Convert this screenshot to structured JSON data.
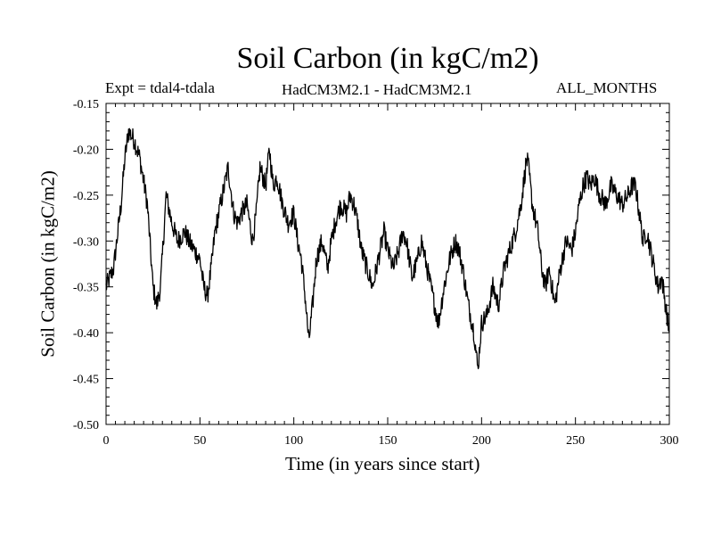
{
  "chart_data": {
    "type": "line",
    "title": "Soil Carbon (in kgC/m2)",
    "subtitle_left": "Expt = tdal4-tdala",
    "subtitle_center": "HadCM3M2.1 - HadCM3M2.1",
    "subtitle_right": "ALL_MONTHS",
    "xlabel": "Time (in years since start)",
    "ylabel": "Soil Carbon (in kgC/m2)",
    "xlim": [
      0,
      300
    ],
    "ylim": [
      -0.5,
      -0.15
    ],
    "xticks": [
      0,
      50,
      100,
      150,
      200,
      250,
      300
    ],
    "xtick_labels": [
      "0",
      "50",
      "100",
      "150",
      "200",
      "250",
      "300"
    ],
    "yticks": [
      -0.15,
      -0.2,
      -0.25,
      -0.3,
      -0.35,
      -0.4,
      -0.45,
      -0.5
    ],
    "ytick_labels": [
      "-0.15",
      "-0.20",
      "-0.25",
      "-0.30",
      "-0.35",
      "-0.40",
      "-0.45",
      "-0.50"
    ],
    "grid": false,
    "series": [
      {
        "name": "Soil Carbon",
        "color": "#000000",
        "x": [
          0,
          4,
          8,
          10,
          12,
          15,
          18,
          22,
          25,
          27,
          29,
          32,
          35,
          38,
          42,
          44,
          47,
          50,
          52,
          54,
          56,
          58,
          62,
          65,
          68,
          70,
          72,
          75,
          78,
          80,
          82,
          85,
          87,
          89,
          91,
          94,
          97,
          100,
          102,
          104,
          106,
          108,
          110,
          112,
          115,
          118,
          120,
          122,
          125,
          128,
          130,
          132,
          134,
          136,
          139,
          142,
          145,
          148,
          150,
          153,
          156,
          158,
          160,
          163,
          166,
          168,
          171,
          174,
          177,
          180,
          183,
          186,
          188,
          190,
          193,
          196,
          198,
          200,
          203,
          206,
          209,
          212,
          215,
          218,
          221,
          224,
          225,
          227,
          230,
          232,
          234,
          236,
          239,
          242,
          245,
          248,
          250,
          252,
          254,
          256,
          258,
          260,
          263,
          266,
          269,
          272,
          275,
          278,
          280,
          282,
          284,
          286,
          288,
          290,
          292,
          294,
          296,
          298,
          300
        ],
        "y": [
          -0.35,
          -0.33,
          -0.26,
          -0.21,
          -0.18,
          -0.19,
          -0.21,
          -0.26,
          -0.35,
          -0.37,
          -0.35,
          -0.25,
          -0.28,
          -0.3,
          -0.29,
          -0.3,
          -0.31,
          -0.32,
          -0.35,
          -0.36,
          -0.33,
          -0.29,
          -0.25,
          -0.22,
          -0.27,
          -0.28,
          -0.27,
          -0.26,
          -0.3,
          -0.27,
          -0.22,
          -0.24,
          -0.2,
          -0.24,
          -0.23,
          -0.26,
          -0.28,
          -0.27,
          -0.3,
          -0.32,
          -0.36,
          -0.41,
          -0.37,
          -0.32,
          -0.3,
          -0.33,
          -0.3,
          -0.28,
          -0.26,
          -0.27,
          -0.25,
          -0.26,
          -0.28,
          -0.31,
          -0.33,
          -0.35,
          -0.32,
          -0.29,
          -0.31,
          -0.33,
          -0.31,
          -0.29,
          -0.3,
          -0.34,
          -0.32,
          -0.3,
          -0.33,
          -0.36,
          -0.39,
          -0.35,
          -0.32,
          -0.3,
          -0.31,
          -0.33,
          -0.37,
          -0.4,
          -0.44,
          -0.39,
          -0.38,
          -0.35,
          -0.37,
          -0.33,
          -0.31,
          -0.29,
          -0.26,
          -0.21,
          -0.22,
          -0.26,
          -0.29,
          -0.33,
          -0.35,
          -0.33,
          -0.37,
          -0.33,
          -0.3,
          -0.31,
          -0.29,
          -0.26,
          -0.24,
          -0.23,
          -0.24,
          -0.23,
          -0.25,
          -0.26,
          -0.24,
          -0.25,
          -0.26,
          -0.25,
          -0.24,
          -0.24,
          -0.27,
          -0.3,
          -0.29,
          -0.31,
          -0.33,
          -0.35,
          -0.34,
          -0.37,
          -0.4
        ]
      }
    ]
  }
}
